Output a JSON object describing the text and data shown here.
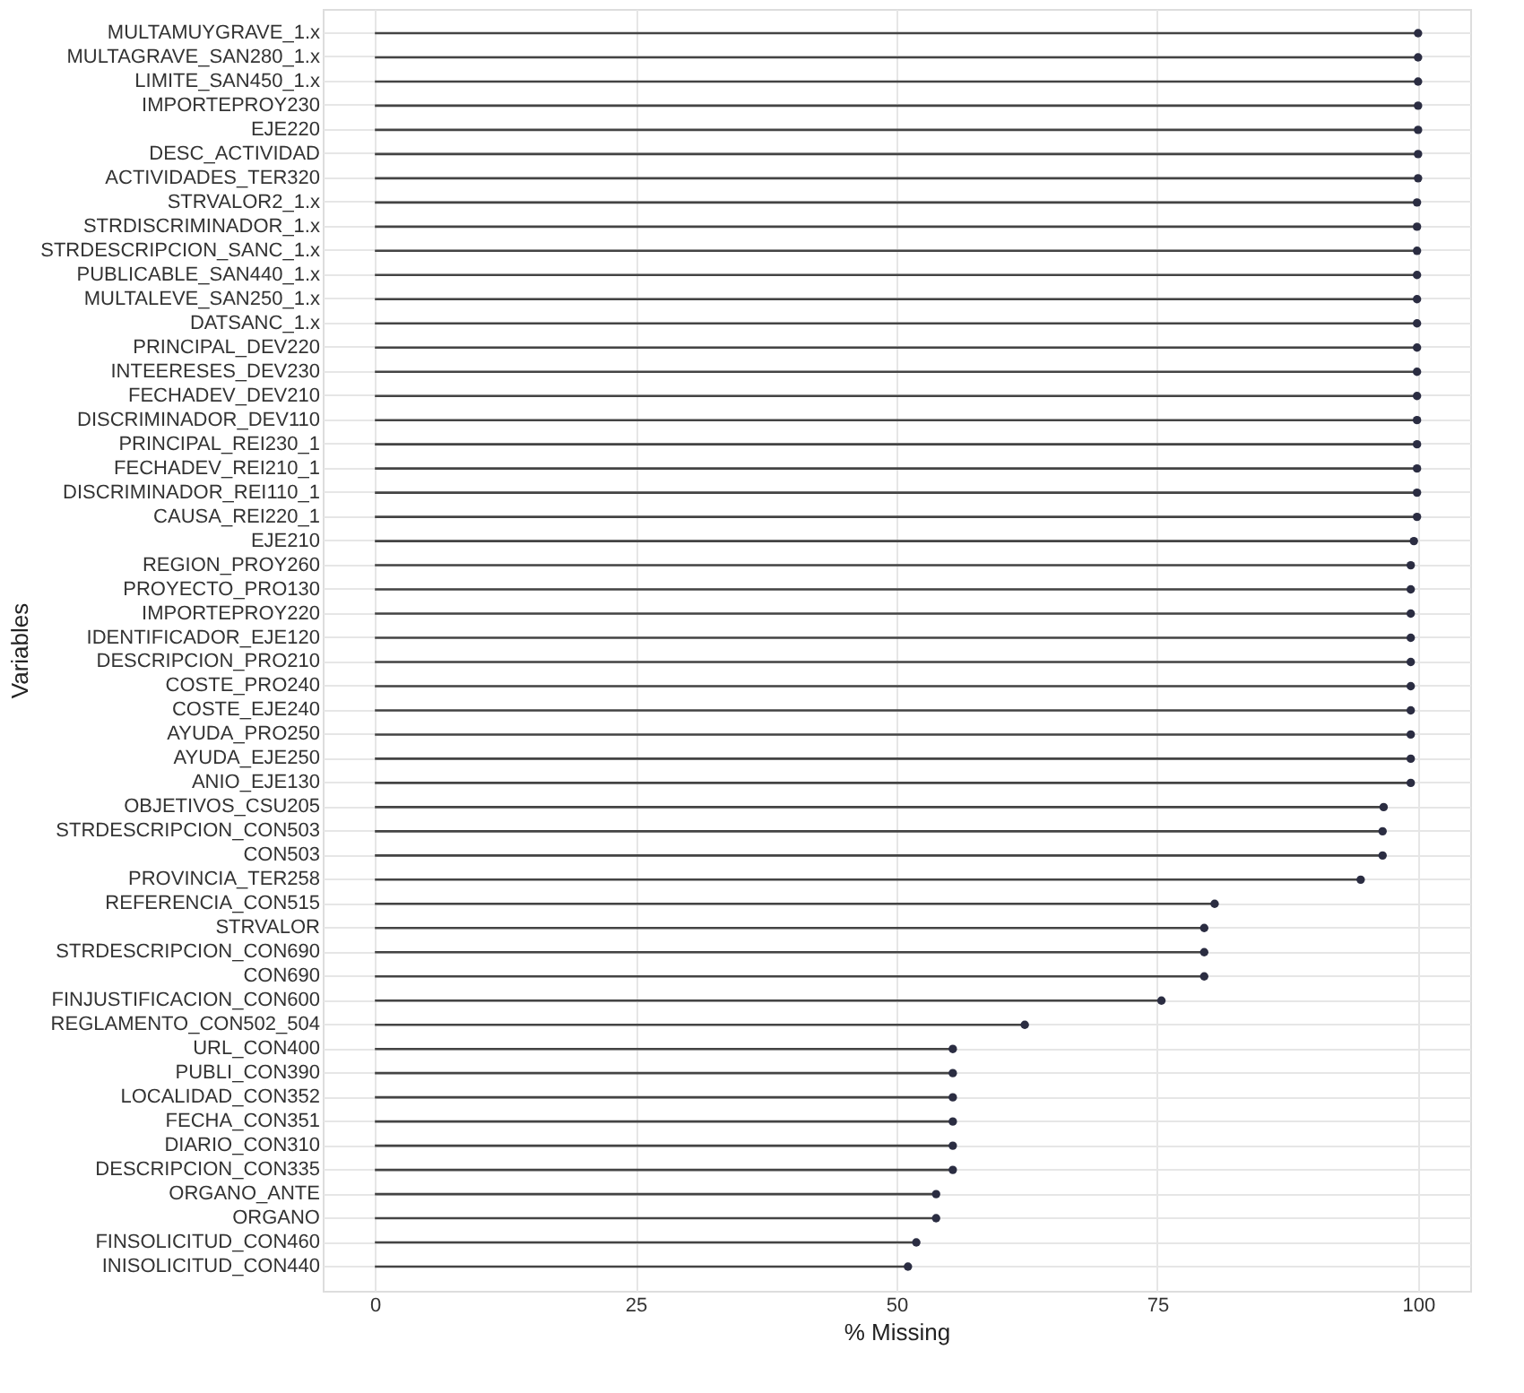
{
  "chart_data": {
    "type": "lollipop",
    "orientation": "horizontal",
    "xlabel": "% Missing",
    "ylabel": "Variables",
    "categories": [
      "MULTAMUYGRAVE_1.x",
      "MULTAGRAVE_SAN280_1.x",
      "LIMITE_SAN450_1.x",
      "IMPORTEPROY230",
      "EJE220",
      "DESC_ACTIVIDAD",
      "ACTIVIDADES_TER320",
      "STRVALOR2_1.x",
      "STRDISCRIMINADOR_1.x",
      "STRDESCRIPCION_SANC_1.x",
      "PUBLICABLE_SAN440_1.x",
      "MULTALEVE_SAN250_1.x",
      "DATSANC_1.x",
      "PRINCIPAL_DEV220",
      "INTEERESES_DEV230",
      "FECHADEV_DEV210",
      "DISCRIMINADOR_DEV110",
      "PRINCIPAL_REI230_1",
      "FECHADEV_REI210_1",
      "DISCRIMINADOR_REI110_1",
      "CAUSA_REI220_1",
      "EJE210",
      "REGION_PROY260",
      "PROYECTO_PRO130",
      "IMPORTEPROY220",
      "IDENTIFICADOR_EJE120",
      "DESCRIPCION_PRO210",
      "COSTE_PRO240",
      "COSTE_EJE240",
      "AYUDA_PRO250",
      "AYUDA_EJE250",
      "ANIO_EJE130",
      "OBJETIVOS_CSU205",
      "STRDESCRIPCION_CON503",
      "CON503",
      "PROVINCIA_TER258",
      "REFERENCIA_CON515",
      "STRVALOR",
      "STRDESCRIPCION_CON690",
      "CON690",
      "FINJUSTIFICACION_CON600",
      "REGLAMENTO_CON502_504",
      "URL_CON400",
      "PUBLI_CON390",
      "LOCALIDAD_CON352",
      "FECHA_CON351",
      "DIARIO_CON310",
      "DESCRIPCION_CON335",
      "ORGANO_ANTE",
      "ORGANO",
      "FINSOLICITUD_CON460",
      "INISOLICITUD_CON440"
    ],
    "values": [
      100,
      100,
      100,
      100,
      100,
      100,
      100,
      99.9,
      99.9,
      99.9,
      99.9,
      99.9,
      99.9,
      99.9,
      99.9,
      99.9,
      99.9,
      99.9,
      99.9,
      99.9,
      99.9,
      99.6,
      99.3,
      99.3,
      99.3,
      99.3,
      99.3,
      99.3,
      99.3,
      99.3,
      99.3,
      99.3,
      96.7,
      96.6,
      96.6,
      94.5,
      80.5,
      79.5,
      79.5,
      79.5,
      75.4,
      62.3,
      55.4,
      55.4,
      55.4,
      55.4,
      55.4,
      55.4,
      53.8,
      53.8,
      51.9,
      51.1
    ],
    "color": "#2b2d42",
    "xlim": [
      -5,
      105
    ],
    "xticks": [
      0,
      25,
      50,
      75,
      100
    ],
    "grid": true,
    "marker": "circle"
  }
}
